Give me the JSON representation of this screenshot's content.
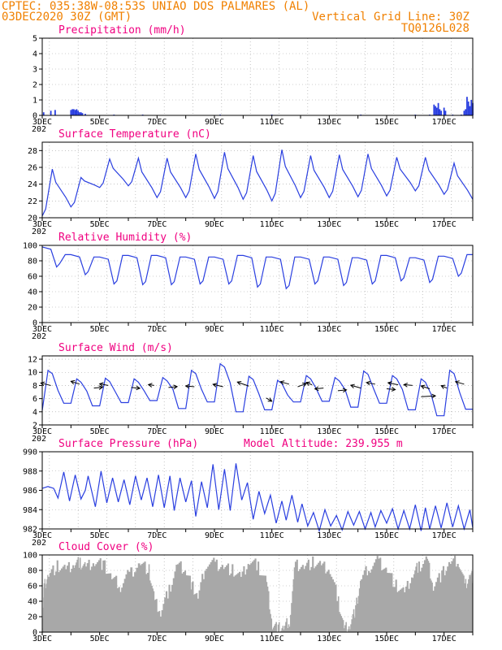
{
  "header": {
    "line1": "CPTEC:   035:38W-08:53S  UNIAO DOS PALMARES (AL)",
    "line2_left": "03DEC2020 30Z (GMT)",
    "line2_right": "Vertical Grid Line: 30Z",
    "line3_right": "TQ0126L028",
    "model_altitude": "Model Altitude: 239.955 m"
  },
  "x_labels": [
    "3DEC",
    "5DEC",
    "7DEC",
    "9DEC",
    "11DEC",
    "13DEC",
    "15DEC",
    "17DEC"
  ],
  "x_overlap_text": "202",
  "colors": {
    "line": "#2a3fe0",
    "cloud": "#a8a8a8",
    "header": "#f08000",
    "title": "#f00080",
    "axis": "#000000",
    "grid": "#a0a0a0"
  },
  "chart_data": [
    {
      "type": "bar",
      "title": "Precipitation (mm/h)",
      "ylim": [
        0,
        5
      ],
      "yticks": [
        "0",
        "1",
        "2",
        "3",
        "4",
        "5"
      ],
      "x_range_days": [
        0,
        15
      ],
      "values": [
        [
          0.05,
          0.2
        ],
        [
          0.3,
          0.3
        ],
        [
          0.45,
          0.35
        ],
        [
          1.0,
          0.35
        ],
        [
          1.05,
          0.4
        ],
        [
          1.1,
          0.4
        ],
        [
          1.15,
          0.35
        ],
        [
          1.2,
          0.4
        ],
        [
          1.25,
          0.3
        ],
        [
          1.3,
          0.2
        ],
        [
          1.35,
          0.2
        ],
        [
          1.4,
          0.15
        ],
        [
          1.5,
          0.1
        ],
        [
          2.5,
          0.05
        ],
        [
          3.5,
          0.05
        ],
        [
          6.2,
          0.05
        ],
        [
          8.0,
          0.05
        ],
        [
          11.1,
          0.05
        ],
        [
          13.0,
          0.05
        ],
        [
          13.5,
          0.05
        ],
        [
          13.65,
          0.7
        ],
        [
          13.7,
          0.6
        ],
        [
          13.75,
          0.5
        ],
        [
          13.8,
          0.8
        ],
        [
          13.85,
          0.4
        ],
        [
          13.9,
          0.3
        ],
        [
          14.0,
          0.5
        ],
        [
          14.05,
          0.3
        ],
        [
          14.3,
          0.05
        ],
        [
          14.6,
          0.05
        ],
        [
          14.8,
          1.2
        ],
        [
          14.85,
          0.9
        ],
        [
          14.9,
          0.6
        ],
        [
          14.95,
          1.0
        ],
        [
          15.0,
          0.8
        ],
        [
          14.75,
          0.4
        ],
        [
          14.7,
          0.3
        ]
      ],
      "grid": true
    },
    {
      "type": "line",
      "title": "Surface Temperature (nC)",
      "ylim": [
        20,
        29
      ],
      "yticks": [
        "20",
        "22",
        "24",
        "26",
        "28"
      ],
      "x_range_days": [
        0,
        15
      ],
      "daily_min": [
        20.2,
        21.3,
        23.6,
        23.8,
        22.4,
        22.4,
        22.3,
        22.2,
        22.0,
        22.4,
        22.4,
        22.5,
        22.6,
        23.2,
        22.8,
        22.2
      ],
      "daily_max": [
        25.8,
        24.8,
        27.0,
        27.1,
        27.1,
        27.6,
        27.8,
        27.4,
        28.1,
        27.4,
        27.5,
        27.6,
        27.2,
        27.2,
        26.5,
        25.2
      ],
      "grid": true
    },
    {
      "type": "line",
      "title": "Relative Humidity (%)",
      "ylim": [
        0,
        100
      ],
      "yticks": [
        "0",
        "20",
        "40",
        "60",
        "80",
        "100"
      ],
      "x_range_days": [
        0,
        15
      ],
      "daily_max": [
        98,
        88,
        85,
        87,
        87,
        85,
        85,
        87,
        85,
        85,
        85,
        84,
        87,
        84,
        86,
        88
      ],
      "daily_min": [
        72,
        62,
        50,
        49,
        49,
        50,
        50,
        46,
        44,
        50,
        48,
        50,
        54,
        52,
        60,
        70
      ],
      "grid": true
    },
    {
      "type": "line",
      "title": "Surface Wind (m/s)",
      "ylim": [
        2,
        12.5
      ],
      "yticks": [
        "2",
        "4",
        "6",
        "8",
        "10",
        "12"
      ],
      "x_range_days": [
        0,
        15
      ],
      "daily_max": [
        10.3,
        9.0,
        9.1,
        9.0,
        9.2,
        10.3,
        11.3,
        9.4,
        8.8,
        9.5,
        9.2,
        10.2,
        9.5,
        9.0,
        10.3,
        9.3
      ],
      "daily_min": [
        4.2,
        5.3,
        4.9,
        5.4,
        5.7,
        4.5,
        5.5,
        4.0,
        4.3,
        5.5,
        5.6,
        4.7,
        5.3,
        4.3,
        3.4,
        4.4
      ],
      "wind_vectors": [
        [
          0.3,
          8.0,
          -0.35,
          0.3
        ],
        [
          1.3,
          8.2,
          -0.3,
          0.35
        ],
        [
          1.8,
          7.6,
          0.3,
          0.1
        ],
        [
          2.3,
          8.0,
          -0.3,
          0.2
        ],
        [
          3.1,
          7.7,
          0.3,
          -0.1
        ],
        [
          3.9,
          8.0,
          -0.2,
          0.1
        ],
        [
          4.4,
          7.7,
          0.3,
          0.1
        ],
        [
          5.3,
          7.8,
          -0.3,
          0.1
        ],
        [
          6.3,
          7.8,
          -0.35,
          0.3
        ],
        [
          7.2,
          7.9,
          -0.4,
          0.5
        ],
        [
          7.8,
          6.1,
          0.2,
          -0.4
        ],
        [
          8.6,
          8.2,
          -0.3,
          0.3
        ],
        [
          8.9,
          7.8,
          0.3,
          0.4
        ],
        [
          9.4,
          8.1,
          -0.2,
          0.3
        ],
        [
          9.8,
          7.6,
          -0.3,
          -0.1
        ],
        [
          10.3,
          7.2,
          0.3,
          0.1
        ],
        [
          11.1,
          7.6,
          -0.35,
          0.35
        ],
        [
          11.6,
          8.2,
          -0.3,
          0.2
        ],
        [
          12.0,
          7.5,
          0.3,
          -0.1
        ],
        [
          12.4,
          8.1,
          -0.35,
          0.25
        ],
        [
          12.9,
          8.0,
          -0.3,
          0.1
        ],
        [
          13.2,
          6.3,
          0.5,
          0.1
        ],
        [
          13.5,
          7.5,
          -0.3,
          0.35
        ],
        [
          14.1,
          7.6,
          -0.2,
          0.3
        ],
        [
          14.7,
          8.2,
          -0.3,
          0.3
        ]
      ],
      "grid": true
    },
    {
      "type": "line",
      "title": "Surface Pressure (hPa)",
      "ylim": [
        982,
        990
      ],
      "yticks": [
        "982",
        "984",
        "986",
        "988",
        "990"
      ],
      "x_range_days": [
        0,
        15
      ],
      "values": [
        [
          0.0,
          986.2
        ],
        [
          0.2,
          986.4
        ],
        [
          0.4,
          986.2
        ],
        [
          0.55,
          985.2
        ],
        [
          0.75,
          987.9
        ],
        [
          0.95,
          984.9
        ],
        [
          1.15,
          987.6
        ],
        [
          1.35,
          985.1
        ],
        [
          1.5,
          986.0
        ],
        [
          1.6,
          987.5
        ],
        [
          1.85,
          984.3
        ],
        [
          2.05,
          988.0
        ],
        [
          2.25,
          984.7
        ],
        [
          2.45,
          987.3
        ],
        [
          2.65,
          984.8
        ],
        [
          2.85,
          987.1
        ],
        [
          3.05,
          984.5
        ],
        [
          3.25,
          987.5
        ],
        [
          3.45,
          985.0
        ],
        [
          3.65,
          987.3
        ],
        [
          3.85,
          984.3
        ],
        [
          4.05,
          987.6
        ],
        [
          4.25,
          984.2
        ],
        [
          4.45,
          987.5
        ],
        [
          4.6,
          983.9
        ],
        [
          4.8,
          987.3
        ],
        [
          5.0,
          984.8
        ],
        [
          5.2,
          987.0
        ],
        [
          5.35,
          983.3
        ],
        [
          5.55,
          986.9
        ],
        [
          5.75,
          984.2
        ],
        [
          5.95,
          988.7
        ],
        [
          6.15,
          984.0
        ],
        [
          6.35,
          988.2
        ],
        [
          6.55,
          983.9
        ],
        [
          6.75,
          988.8
        ],
        [
          6.95,
          985.0
        ],
        [
          7.15,
          986.8
        ],
        [
          7.35,
          983.0
        ],
        [
          7.55,
          985.9
        ],
        [
          7.75,
          983.6
        ],
        [
          7.95,
          985.5
        ],
        [
          8.15,
          982.6
        ],
        [
          8.35,
          984.9
        ],
        [
          8.5,
          982.9
        ],
        [
          8.7,
          985.5
        ],
        [
          8.9,
          982.7
        ],
        [
          9.05,
          984.6
        ],
        [
          9.25,
          982.3
        ],
        [
          9.45,
          983.7
        ],
        [
          9.65,
          981.8
        ],
        [
          9.85,
          984.0
        ],
        [
          10.05,
          982.3
        ],
        [
          10.25,
          983.4
        ],
        [
          10.45,
          981.9
        ],
        [
          10.65,
          983.8
        ],
        [
          10.85,
          982.4
        ],
        [
          11.05,
          983.8
        ],
        [
          11.25,
          982.0
        ],
        [
          11.45,
          983.7
        ],
        [
          11.6,
          982.2
        ],
        [
          11.8,
          983.9
        ],
        [
          12.0,
          982.6
        ],
        [
          12.2,
          984.1
        ],
        [
          12.4,
          982.0
        ],
        [
          12.6,
          983.9
        ],
        [
          12.8,
          982.0
        ],
        [
          13.0,
          984.5
        ],
        [
          13.2,
          981.8
        ],
        [
          13.35,
          984.2
        ],
        [
          13.5,
          982.0
        ],
        [
          13.7,
          984.4
        ],
        [
          13.9,
          982.1
        ],
        [
          14.1,
          984.7
        ],
        [
          14.3,
          982.2
        ],
        [
          14.5,
          984.4
        ],
        [
          14.7,
          982.0
        ],
        [
          14.9,
          984.0
        ],
        [
          15.0,
          982.1
        ]
      ],
      "grid": true
    },
    {
      "type": "area",
      "title": "Cloud Cover (%)",
      "ylim": [
        0,
        100
      ],
      "yticks": [
        "0",
        "20",
        "40",
        "60",
        "80",
        "100"
      ],
      "x_range_days": [
        0,
        15
      ],
      "values": [
        [
          0.0,
          0
        ],
        [
          0.05,
          60
        ],
        [
          0.2,
          75
        ],
        [
          0.5,
          85
        ],
        [
          0.8,
          80
        ],
        [
          1.1,
          88
        ],
        [
          1.3,
          90
        ],
        [
          1.5,
          85
        ],
        [
          1.8,
          92
        ],
        [
          2.1,
          88
        ],
        [
          2.4,
          70
        ],
        [
          2.7,
          60
        ],
        [
          3.0,
          75
        ],
        [
          3.4,
          90
        ],
        [
          3.7,
          80
        ],
        [
          3.9,
          40
        ],
        [
          4.1,
          25
        ],
        [
          4.4,
          55
        ],
        [
          4.7,
          88
        ],
        [
          5.0,
          80
        ],
        [
          5.2,
          60
        ],
        [
          5.4,
          45
        ],
        [
          5.7,
          90
        ],
        [
          6.0,
          88
        ],
        [
          6.3,
          85
        ],
        [
          6.6,
          80
        ],
        [
          6.9,
          70
        ],
        [
          7.2,
          92
        ],
        [
          7.5,
          85
        ],
        [
          7.8,
          65
        ],
        [
          8.0,
          10
        ],
        [
          8.2,
          5
        ],
        [
          8.4,
          5
        ],
        [
          8.6,
          15
        ],
        [
          8.8,
          88
        ],
        [
          9.1,
          85
        ],
        [
          9.4,
          90
        ],
        [
          9.7,
          85
        ],
        [
          10.0,
          80
        ],
        [
          10.3,
          40
        ],
        [
          10.5,
          5
        ],
        [
          10.7,
          10
        ],
        [
          10.9,
          30
        ],
        [
          11.1,
          70
        ],
        [
          11.4,
          85
        ],
        [
          11.7,
          92
        ],
        [
          12.0,
          80
        ],
        [
          12.3,
          60
        ],
        [
          12.6,
          50
        ],
        [
          12.9,
          75
        ],
        [
          13.1,
          85
        ],
        [
          13.4,
          95
        ],
        [
          13.6,
          60
        ],
        [
          13.9,
          75
        ],
        [
          14.2,
          90
        ],
        [
          14.5,
          92
        ],
        [
          14.7,
          60
        ],
        [
          14.9,
          75
        ],
        [
          15.0,
          70
        ]
      ],
      "grid": true
    }
  ]
}
